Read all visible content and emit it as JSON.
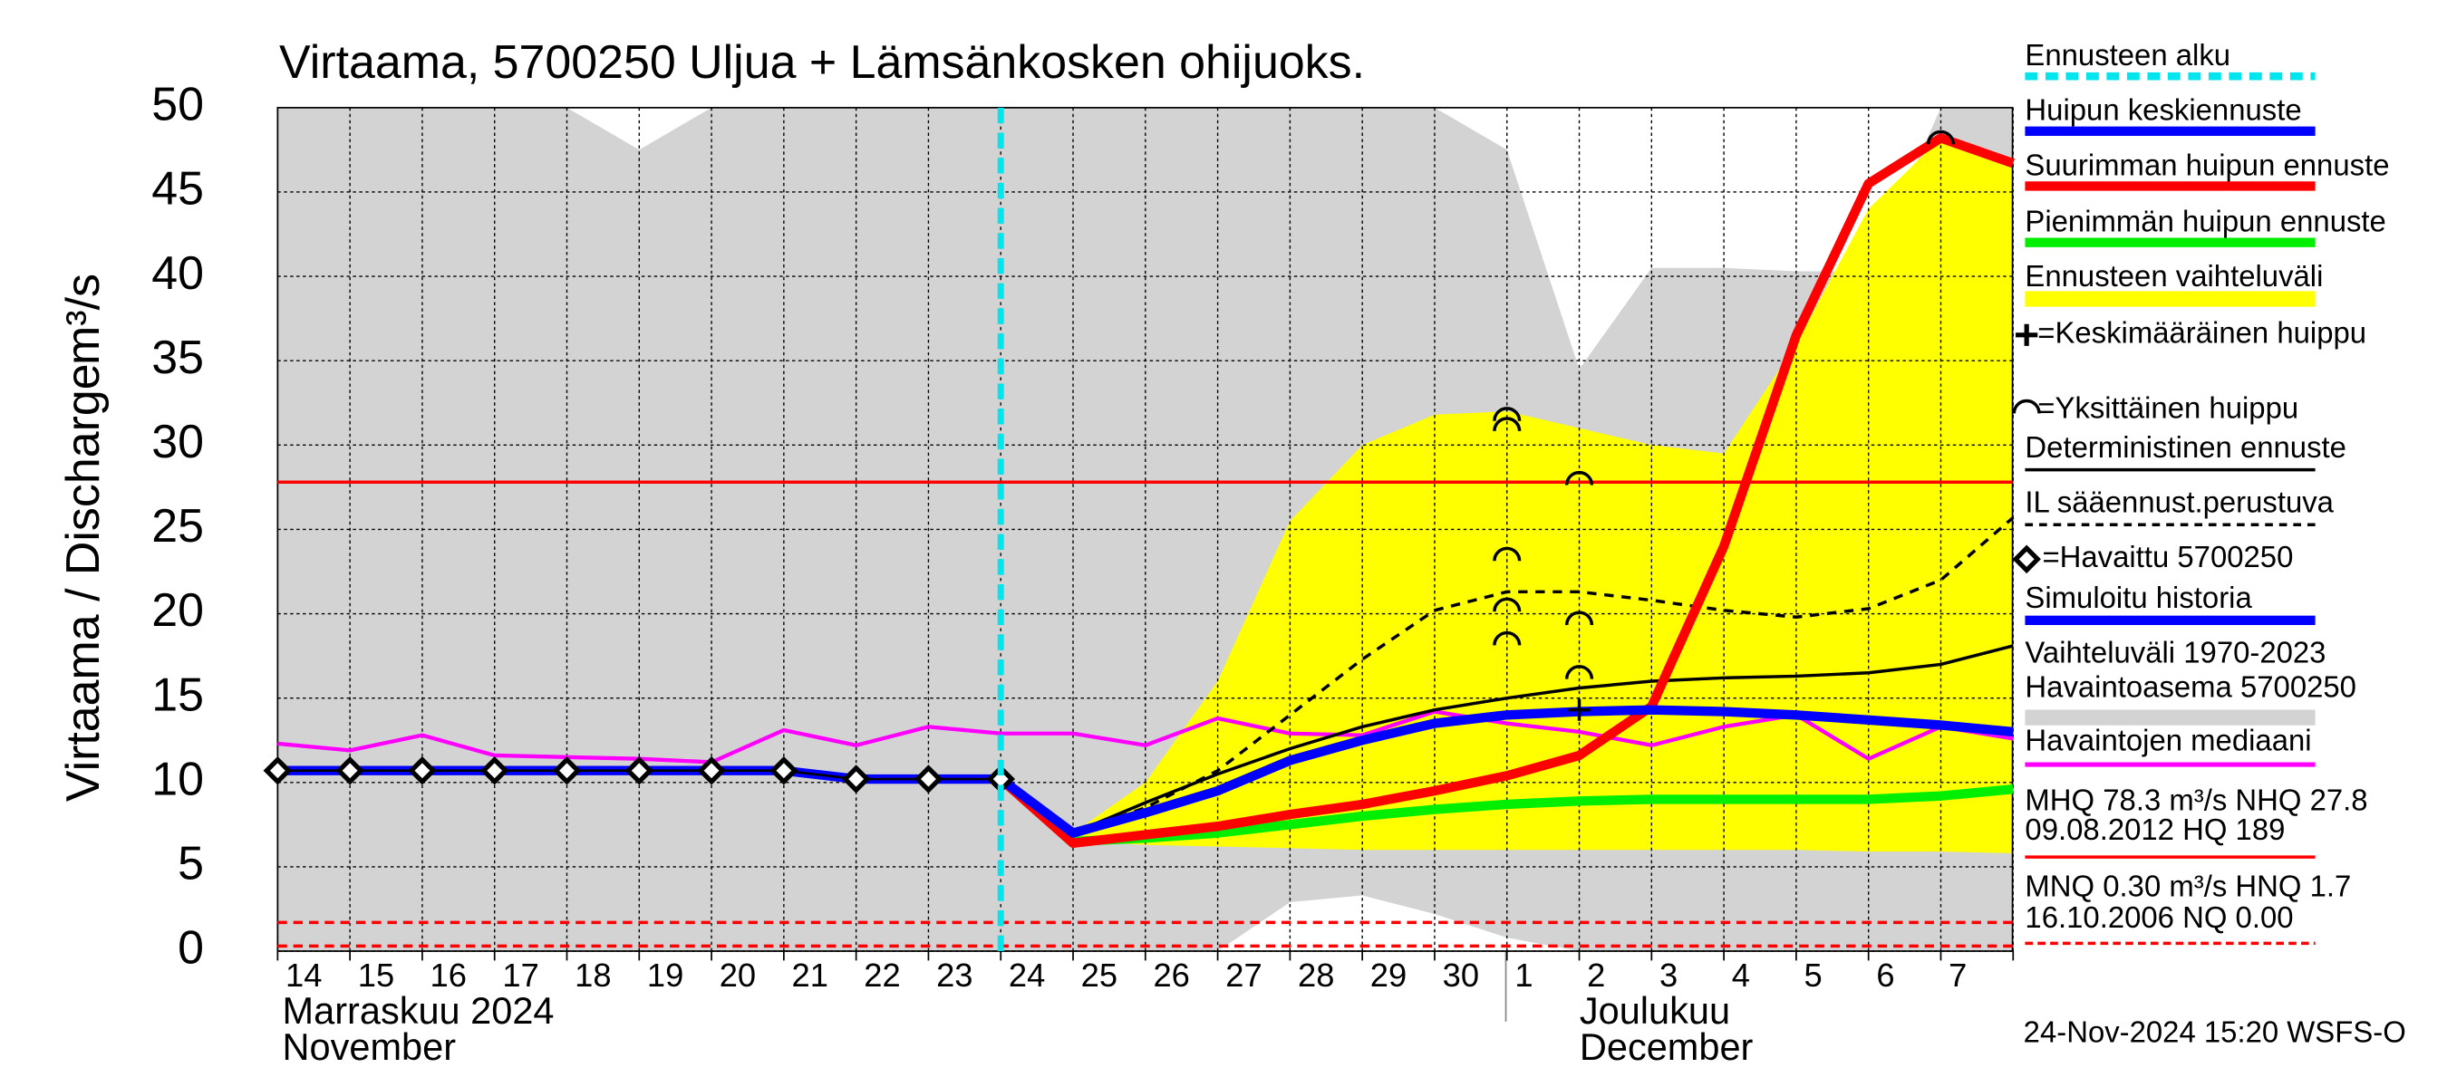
{
  "chart_data": {
    "type": "line",
    "title": "Virtaama, 5700250 Uljua + Lämsänkosken ohijuoks.",
    "y_label": "Virtaama / Discharge",
    "y_unit": "m³/s",
    "months": [
      [
        "Marraskuu 2024",
        "November"
      ],
      [
        "Joulukuu",
        "December"
      ]
    ],
    "timestamp": "24-Nov-2024 15:20 WSFS-O",
    "categories": [
      "14",
      "15",
      "16",
      "17",
      "18",
      "19",
      "20",
      "21",
      "22",
      "23",
      "24",
      "25",
      "26",
      "27",
      "28",
      "29",
      "30",
      "1",
      "2",
      "3",
      "4",
      "5",
      "6",
      "7",
      null
    ],
    "ylim": [
      0,
      50
    ],
    "yticks": [
      0,
      5,
      10,
      15,
      20,
      25,
      30,
      35,
      40,
      45,
      50
    ],
    "grid": true,
    "forecast_start": {
      "name": "Ennusteen alku",
      "x": "24",
      "color": "#00e5ee"
    },
    "bands": [
      {
        "name": [
          "Ennusteen vaihteluväli"
        ],
        "color": "#ffff00",
        "low": [
          null,
          null,
          null,
          null,
          null,
          null,
          null,
          null,
          null,
          null,
          10.2,
          6.5,
          6.3,
          6.2,
          6.1,
          6.0,
          6.0,
          6.0,
          6.0,
          6.0,
          6.0,
          6.0,
          5.9,
          5.9,
          5.8
        ],
        "high": [
          null,
          null,
          null,
          null,
          null,
          null,
          null,
          null,
          null,
          null,
          10.2,
          7.0,
          10.0,
          16.0,
          25.5,
          30.0,
          31.8,
          32.0,
          31.0,
          30.0,
          29.5,
          36.0,
          44.0,
          48.2,
          46.7
        ]
      },
      {
        "name": [
          "Vaihteluväli 1970-2023",
          " Havaintoasema 5700250"
        ],
        "color": "#d3d3d3",
        "low": [
          0,
          0,
          0,
          0,
          0,
          0,
          0,
          0,
          0,
          0,
          0,
          0,
          0,
          0,
          2.9,
          3.3,
          2.2,
          0.8,
          0,
          0,
          0,
          0,
          0,
          0,
          0
        ],
        "high": [
          50,
          50,
          50,
          50,
          50,
          47.5,
          50,
          50,
          50,
          50,
          50,
          50,
          50,
          50,
          50,
          50,
          50,
          47.5,
          34.5,
          40.5,
          40.5,
          40.3,
          40.3,
          50,
          50
        ]
      }
    ],
    "series": [
      {
        "name": "Huipun keskiennuste",
        "color": "#0000ff",
        "width": 6,
        "values": [
          null,
          null,
          null,
          null,
          null,
          null,
          null,
          null,
          null,
          null,
          10.2,
          7.0,
          8.2,
          9.5,
          11.3,
          12.5,
          13.5,
          14.0,
          14.2,
          14.3,
          14.2,
          14.0,
          13.7,
          13.4,
          13.0
        ]
      },
      {
        "name": "Suurimman huipun ennuste",
        "color": "#ff0000",
        "width": 6,
        "values": [
          null,
          null,
          null,
          null,
          null,
          null,
          null,
          null,
          null,
          null,
          10.2,
          6.4,
          6.9,
          7.4,
          8.1,
          8.7,
          9.5,
          10.4,
          11.6,
          14.5,
          24.0,
          36.5,
          45.5,
          48.2,
          46.7
        ]
      },
      {
        "name": "Pienimmän huipun ennuste",
        "color": "#00ee00",
        "width": 6,
        "values": [
          null,
          null,
          null,
          null,
          null,
          null,
          null,
          null,
          null,
          null,
          10.2,
          6.5,
          6.7,
          7.0,
          7.5,
          8.0,
          8.4,
          8.7,
          8.9,
          9.0,
          9.0,
          9.0,
          9.0,
          9.2,
          9.6
        ]
      },
      {
        "name": "Deterministinen ennuste",
        "color": "#000000",
        "width": 2,
        "values": [
          null,
          null,
          null,
          null,
          null,
          null,
          null,
          null,
          null,
          null,
          10.2,
          7.0,
          8.8,
          10.5,
          12.0,
          13.3,
          14.3,
          15.0,
          15.6,
          16.0,
          16.2,
          16.3,
          16.5,
          17.0,
          18.1
        ]
      },
      {
        "name": "IL sääennust.perustuva",
        "color": "#000000",
        "width": 2,
        "dash": true,
        "values": [
          null,
          null,
          null,
          null,
          null,
          null,
          null,
          null,
          null,
          null,
          10.2,
          7.0,
          8.5,
          10.7,
          14.0,
          17.3,
          20.2,
          21.3,
          21.3,
          20.8,
          20.2,
          19.8,
          20.3,
          22.0,
          25.7
        ]
      },
      {
        "name": "Simuloitu historia",
        "color": "#0000ff",
        "width": 6,
        "values": [
          10.7,
          10.7,
          10.7,
          10.7,
          10.7,
          10.7,
          10.7,
          10.7,
          10.2,
          10.2,
          10.2,
          null,
          null,
          null,
          null,
          null,
          null,
          null,
          null,
          null,
          null,
          null,
          null,
          null,
          null
        ]
      },
      {
        "name": "Havaintojen mediaani",
        "color": "#ff00ff",
        "width": 2.5,
        "values": [
          12.3,
          11.9,
          12.8,
          11.6,
          11.5,
          11.4,
          11.2,
          13.1,
          12.2,
          13.3,
          12.9,
          12.9,
          12.2,
          13.8,
          12.9,
          12.8,
          14.2,
          13.5,
          13.0,
          12.2,
          13.3,
          14.0,
          11.4,
          13.3,
          12.6
        ]
      },
      {
        "name": "=Havaittu 5700250",
        "color": "#000000",
        "width": 1.5,
        "marker": "diamond",
        "values": [
          10.7,
          10.7,
          10.7,
          10.7,
          10.7,
          10.7,
          10.7,
          10.7,
          10.2,
          10.2,
          10.2,
          null,
          null,
          null,
          null,
          null,
          null,
          null,
          null,
          null,
          null,
          null,
          null,
          null,
          null
        ]
      }
    ],
    "peaks": {
      "name": "=Yksittäinen huippu",
      "x": [
        "1",
        "1",
        "1",
        "1",
        "1",
        "2",
        "2",
        "2",
        "7"
      ],
      "values": [
        31.8,
        31.2,
        23.5,
        20.5,
        18.5,
        28.0,
        19.7,
        16.5,
        48.2
      ]
    },
    "mean_peak": {
      "name": "=Keskimääräinen huippu",
      "x": [
        "2"
      ],
      "values": [
        14.3
      ]
    },
    "hlines": [
      {
        "label": [
          "MHQ 78.3 m³/s NHQ 27.8",
          "09.08.2012 HQ  189"
        ],
        "values": [
          27.8
        ],
        "color": "#ff0000"
      },
      {
        "label": [
          "MNQ 0.30 m³/s HNQ  1.7",
          "16.10.2006 NQ 0.00"
        ],
        "values": [
          1.7,
          0.3
        ],
        "color": "#ff0000",
        "dash": true
      }
    ]
  }
}
